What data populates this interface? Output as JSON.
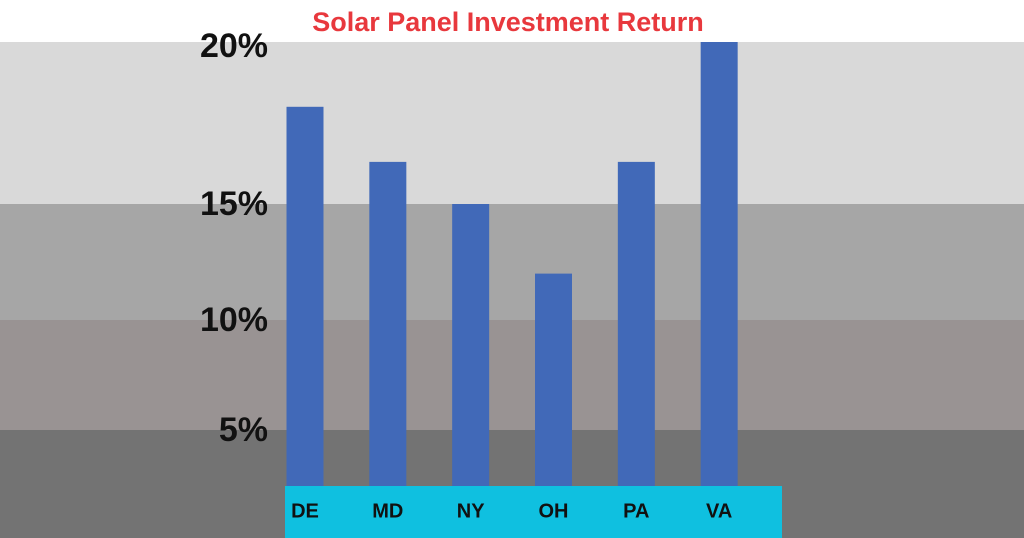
{
  "chart_data": {
    "type": "bar",
    "title": "Solar Panel Investment Return",
    "categories": [
      "DE",
      "MD",
      "NY",
      "OH",
      "PA",
      "VA"
    ],
    "values": [
      18,
      16.3,
      15,
      12,
      16.3,
      20
    ],
    "color": "#4169b8",
    "ylim": [
      2.5,
      20
    ],
    "yticks": [
      {
        "value": 5,
        "label": "5%"
      },
      {
        "value": 10,
        "label": "10%"
      },
      {
        "value": 15,
        "label": "15%"
      },
      {
        "value": 20,
        "label": "20%"
      }
    ],
    "band_colors": [
      "#737373",
      "#999393",
      "#a6a6a6",
      "#d9d9d9"
    ],
    "axis_strip_color": "#0fc0e0",
    "title_color": "#e8383d"
  }
}
